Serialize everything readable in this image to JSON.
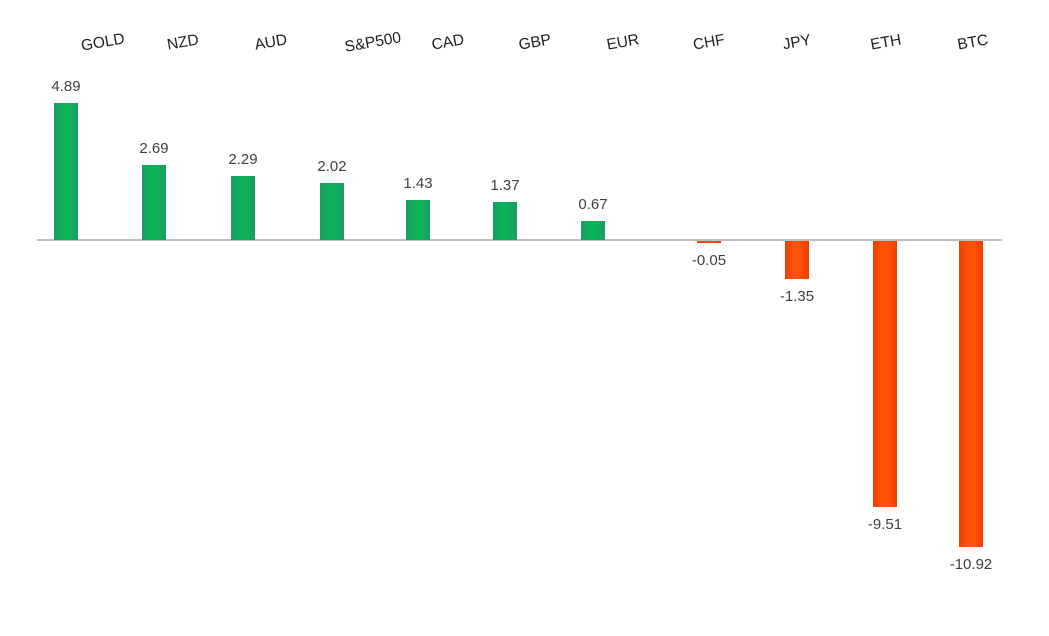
{
  "chart_data": {
    "type": "bar",
    "categories": [
      "GOLD",
      "NZD",
      "AUD",
      "S&P500",
      "CAD",
      "GBP",
      "EUR",
      "CHF",
      "JPY",
      "ETH",
      "BTC"
    ],
    "values": [
      4.89,
      2.69,
      2.29,
      2.02,
      1.43,
      1.37,
      0.67,
      -0.05,
      -1.35,
      -9.51,
      -10.92
    ],
    "value_labels": [
      "4.89",
      "2.69",
      "2.29",
      "2.02",
      "1.43",
      "1.37",
      "0.67",
      "-0.05",
      "-1.35",
      "-9.51",
      "-10.92"
    ],
    "title": "",
    "xlabel": "",
    "ylabel": "",
    "ylim": [
      -12,
      6
    ],
    "grid": false,
    "legend": false,
    "category_label_position": "top",
    "category_label_rotation_deg": -10,
    "colors": {
      "positive": "#0db157",
      "positive_edge": "#1a9a66",
      "negative": "#ff5206",
      "negative_edge": "#f23c00",
      "axis_line": "#bfbfbf",
      "value_label": "#404040",
      "category_label": "#1f1f1f",
      "background": "#ffffff"
    }
  }
}
